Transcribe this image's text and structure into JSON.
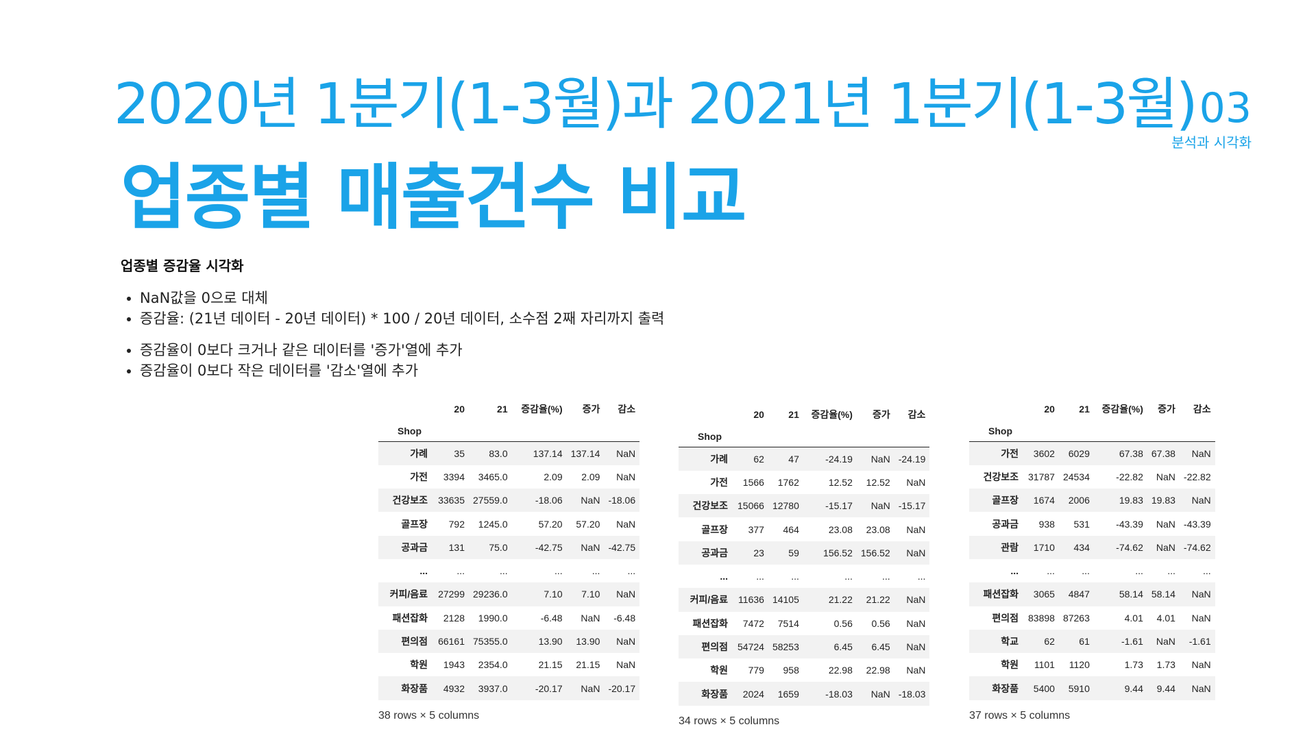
{
  "header": {
    "subtitle": "2020년 1분기(1-3월)과 2021년 1분기(1-3월)",
    "title": "업종별 매출건수 비교",
    "section_number": "03",
    "section_label": "분석과 시각화"
  },
  "content": {
    "heading": "업종별 증감율 시각화",
    "bullets_group1": [
      "NaN값을 0으로 대체",
      "증감율: (21년 데이터 - 20년 데이터) * 100 / 20년 데이터, 소수점 2째 자리까지 출력"
    ],
    "bullets_group2": [
      "증감율이 0보다 크거나 같은 데이터를 '증가'열에 추가",
      "증감율이 0보다 작은 데이터를 '감소'열에 추가"
    ]
  },
  "tables": [
    {
      "columns": [
        "20",
        "21",
        "증감율(%)",
        "증가",
        "감소"
      ],
      "index_name": "Shop",
      "rows": [
        [
          "가례",
          "35",
          "83.0",
          "137.14",
          "137.14",
          "NaN"
        ],
        [
          "가전",
          "3394",
          "3465.0",
          "2.09",
          "2.09",
          "NaN"
        ],
        [
          "건강보조",
          "33635",
          "27559.0",
          "-18.06",
          "NaN",
          "-18.06"
        ],
        [
          "골프장",
          "792",
          "1245.0",
          "57.20",
          "57.20",
          "NaN"
        ],
        [
          "공과금",
          "131",
          "75.0",
          "-42.75",
          "NaN",
          "-42.75"
        ],
        [
          "...",
          "...",
          "...",
          "...",
          "...",
          "..."
        ],
        [
          "커피/음료",
          "27299",
          "29236.0",
          "7.10",
          "7.10",
          "NaN"
        ],
        [
          "패션잡화",
          "2128",
          "1990.0",
          "-6.48",
          "NaN",
          "-6.48"
        ],
        [
          "편의점",
          "66161",
          "75355.0",
          "13.90",
          "13.90",
          "NaN"
        ],
        [
          "학원",
          "1943",
          "2354.0",
          "21.15",
          "21.15",
          "NaN"
        ],
        [
          "화장품",
          "4932",
          "3937.0",
          "-20.17",
          "NaN",
          "-20.17"
        ]
      ],
      "caption": "38 rows × 5 columns"
    },
    {
      "columns": [
        "20",
        "21",
        "증감율(%)",
        "증가",
        "감소"
      ],
      "index_name": "Shop",
      "rows": [
        [
          "가례",
          "62",
          "47",
          "-24.19",
          "NaN",
          "-24.19"
        ],
        [
          "가전",
          "1566",
          "1762",
          "12.52",
          "12.52",
          "NaN"
        ],
        [
          "건강보조",
          "15066",
          "12780",
          "-15.17",
          "NaN",
          "-15.17"
        ],
        [
          "골프장",
          "377",
          "464",
          "23.08",
          "23.08",
          "NaN"
        ],
        [
          "공과금",
          "23",
          "59",
          "156.52",
          "156.52",
          "NaN"
        ],
        [
          "...",
          "...",
          "...",
          "...",
          "...",
          "..."
        ],
        [
          "커피/음료",
          "11636",
          "14105",
          "21.22",
          "21.22",
          "NaN"
        ],
        [
          "패션잡화",
          "7472",
          "7514",
          "0.56",
          "0.56",
          "NaN"
        ],
        [
          "편의점",
          "54724",
          "58253",
          "6.45",
          "6.45",
          "NaN"
        ],
        [
          "학원",
          "779",
          "958",
          "22.98",
          "22.98",
          "NaN"
        ],
        [
          "화장품",
          "2024",
          "1659",
          "-18.03",
          "NaN",
          "-18.03"
        ]
      ],
      "caption": "34 rows × 5 columns"
    },
    {
      "columns": [
        "20",
        "21",
        "증감율(%)",
        "증가",
        "감소"
      ],
      "index_name": "Shop",
      "rows": [
        [
          "가전",
          "3602",
          "6029",
          "67.38",
          "67.38",
          "NaN"
        ],
        [
          "건강보조",
          "31787",
          "24534",
          "-22.82",
          "NaN",
          "-22.82"
        ],
        [
          "골프장",
          "1674",
          "2006",
          "19.83",
          "19.83",
          "NaN"
        ],
        [
          "공과금",
          "938",
          "531",
          "-43.39",
          "NaN",
          "-43.39"
        ],
        [
          "관람",
          "1710",
          "434",
          "-74.62",
          "NaN",
          "-74.62"
        ],
        [
          "...",
          "...",
          "...",
          "...",
          "...",
          "..."
        ],
        [
          "패션잡화",
          "3065",
          "4847",
          "58.14",
          "58.14",
          "NaN"
        ],
        [
          "편의점",
          "83898",
          "87263",
          "4.01",
          "4.01",
          "NaN"
        ],
        [
          "학교",
          "62",
          "61",
          "-1.61",
          "NaN",
          "-1.61"
        ],
        [
          "학원",
          "1101",
          "1120",
          "1.73",
          "1.73",
          "NaN"
        ],
        [
          "화장품",
          "5400",
          "5910",
          "9.44",
          "9.44",
          "NaN"
        ]
      ],
      "caption": "37 rows × 5 columns"
    }
  ]
}
